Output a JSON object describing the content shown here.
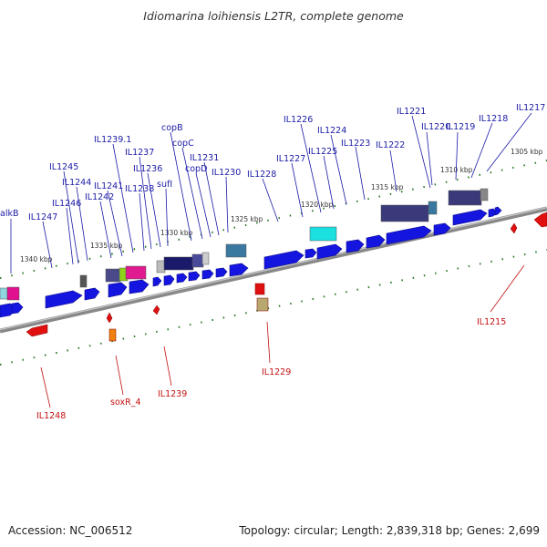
{
  "title": "Idiomarina loihiensis L2TR, complete genome",
  "accession": "Accession: NC_006512",
  "summary": "Topology: circular; Length: 2,839,318 bp; Genes: 2,699",
  "colors": {
    "forward_gene": "#1515e0",
    "reverse_gene": "#e01010",
    "forward_label": "#1a1aa6",
    "reverse_label": "#c21010",
    "backbone": "#808080",
    "tick": "#2a7a2a"
  },
  "scale_labels": [
    "1305 kbp",
    "1310 kbp",
    "1315 kbp",
    "1320 kbp",
    "1325 kbp",
    "1330 kbp",
    "1335 kbp",
    "1340 kbp"
  ],
  "forward_genes": [
    "IL1217",
    "IL1218",
    "IL1219",
    "IL1220",
    "IL1221",
    "IL1222",
    "IL1223",
    "IL1224",
    "IL1225",
    "IL1226",
    "IL1227",
    "IL1228",
    "IL1230",
    "IL1231",
    "copD",
    "copC",
    "copB",
    "sufI",
    "IL1236",
    "IL1237",
    "IL1238",
    "IL1239.1",
    "IL1241",
    "IL1242",
    "IL1244",
    "IL1245",
    "IL1246",
    "IL1247",
    "alkB"
  ],
  "reverse_genes": [
    "IL1215",
    "IL1229",
    "IL1239",
    "soxR_4",
    "IL1248"
  ]
}
